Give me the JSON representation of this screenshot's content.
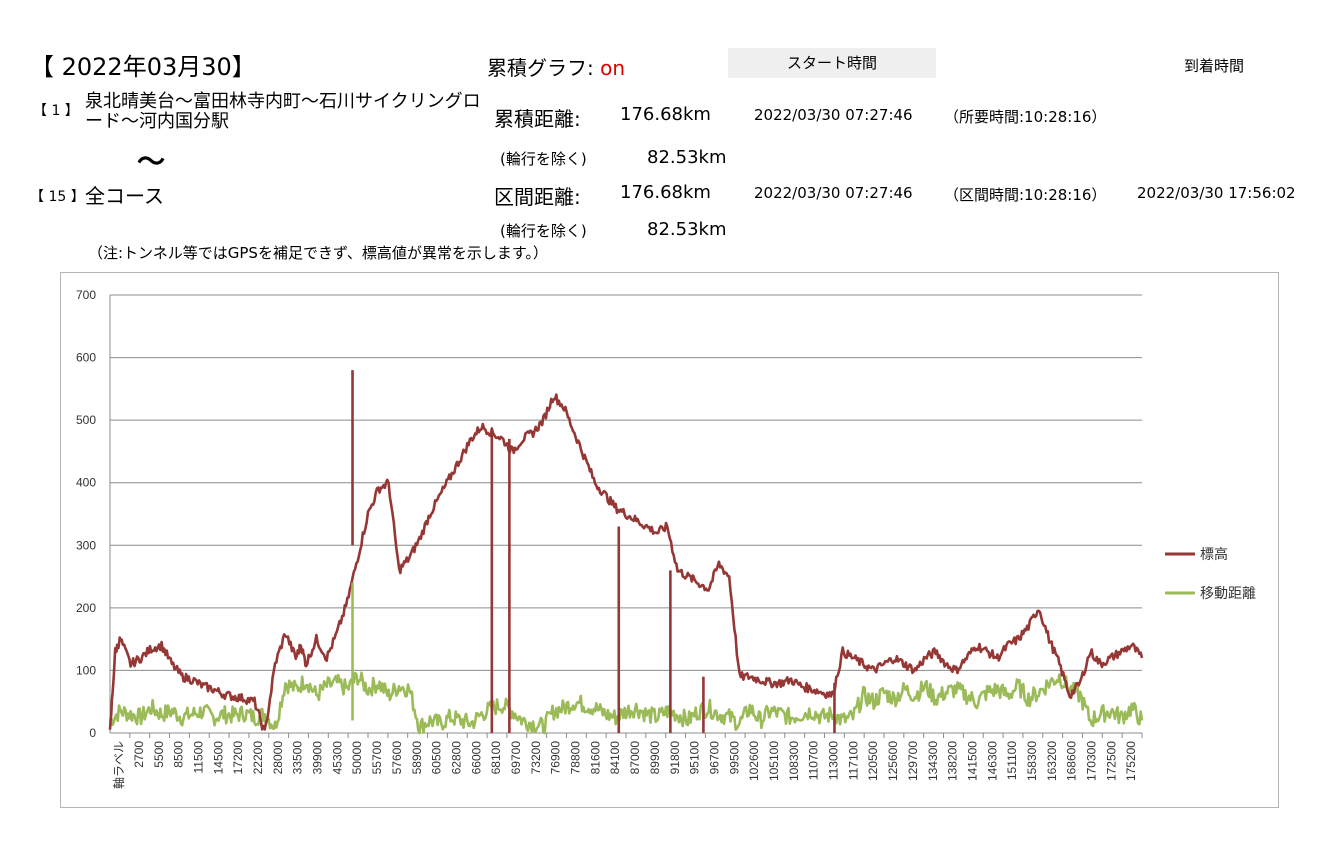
{
  "header": {
    "date": "【 2022年03月30】",
    "cumulative_graph_label": "累積グラフ:",
    "cumulative_graph_value": "on",
    "start_time_button": "スタート時間",
    "arrival_time_label": "到着時間"
  },
  "route": {
    "first_no": "【 1 】",
    "first_name": "泉北晴美台～富田林寺内町～石川サイクリングロード～河内国分駅",
    "tilde": "～",
    "last_no": "【 15 】",
    "last_name": "全コース"
  },
  "stats": {
    "cumulative_distance_label": "累積距離:",
    "cumulative_distance_value": "176.68km",
    "cumulative_start": "2022/03/30 07:27:46",
    "cumulative_required_time": "（所要時間:10:28:16）",
    "excluding_carry_label_1": "(輪行を除く)",
    "excluding_carry_value_1": "82.53km",
    "section_distance_label": "区間距離:",
    "section_distance_value": "176.68km",
    "section_start": "2022/03/30 07:27:46",
    "section_time": "（区間時間:10:28:16）",
    "section_arrival": "2022/03/30 17:56:02",
    "excluding_carry_label_2": "(輪行を除く)",
    "excluding_carry_value_2": "82.53km"
  },
  "note": "（注:トンネル等ではGPSを補足できず、標高値が異常を示します。）",
  "chart_data": {
    "type": "line",
    "title": "",
    "xlabel": "",
    "ylabel": "",
    "ylim": [
      0,
      700
    ],
    "yticks": [
      0,
      100,
      200,
      300,
      400,
      500,
      600,
      700
    ],
    "x_tick_labels": [
      "軸ラベル",
      "2700",
      "5500",
      "8500",
      "11500",
      "14500",
      "17200",
      "22200",
      "28000",
      "33500",
      "39900",
      "45300",
      "50000",
      "55700",
      "57600",
      "58900",
      "60500",
      "62800",
      "66000",
      "68100",
      "69700",
      "73200",
      "76900",
      "78800",
      "81600",
      "84100",
      "87000",
      "89900",
      "91800",
      "95100",
      "96700",
      "99500",
      "102600",
      "105100",
      "108300",
      "110700",
      "113000",
      "117100",
      "120500",
      "125600",
      "129700",
      "134300",
      "138200",
      "141500",
      "146300",
      "151100",
      "158300",
      "163200",
      "168600",
      "170300",
      "172500",
      "175200"
    ],
    "grid": true,
    "legend_position": "right",
    "colors": {
      "elevation": "#953735",
      "moving_distance": "#9BBB59"
    },
    "series": [
      {
        "name": "標高",
        "key": "elevation",
        "x": [
          0,
          0.5,
          1,
          2,
          3,
          4,
          5,
          6,
          7,
          8,
          9,
          10,
          11,
          12,
          13,
          14,
          15,
          16,
          17,
          18,
          18.5,
          19,
          20,
          21,
          22,
          23,
          24,
          25,
          26,
          27,
          28,
          29,
          30,
          31,
          32,
          33,
          34,
          35,
          36,
          37,
          38,
          39,
          40,
          41,
          42,
          43,
          44,
          45,
          46,
          47,
          48,
          49,
          50,
          51,
          52,
          53,
          54,
          55,
          56,
          57,
          58,
          59,
          60,
          61,
          62,
          63,
          64,
          65,
          66,
          67,
          68,
          69,
          70,
          71,
          72,
          73,
          74,
          75,
          76,
          77,
          78,
          79,
          80,
          81,
          82,
          83,
          84,
          85,
          86,
          87,
          88,
          89,
          90,
          91,
          92,
          93,
          94,
          95,
          96,
          97,
          98,
          99,
          100
        ],
        "values": [
          0,
          130,
          150,
          110,
          120,
          135,
          140,
          110,
          90,
          85,
          75,
          70,
          62,
          58,
          55,
          50,
          0,
          110,
          160,
          120,
          140,
          110,
          150,
          120,
          160,
          210,
          280,
          350,
          390,
          400,
          260,
          280,
          310,
          350,
          380,
          410,
          440,
          470,
          490,
          480,
          470,
          450,
          470,
          480,
          500,
          540,
          520,
          480,
          440,
          400,
          380,
          360,
          350,
          340,
          330,
          320,
          330,
          260,
          250,
          240,
          230,
          270,
          250,
          90,
          90,
          85,
          80,
          80,
          85,
          75,
          70,
          65,
          60,
          130,
          120,
          110,
          100,
          110,
          120,
          110,
          100,
          120,
          130,
          110,
          100,
          120,
          140,
          130,
          120,
          140,
          150,
          170,
          200,
          150,
          110,
          60,
          80,
          130,
          110,
          120,
          130,
          140,
          120
        ]
      },
      {
        "name": "移動距離",
        "key": "moving_distance",
        "x": [
          0,
          1,
          2,
          3,
          4,
          5,
          6,
          7,
          8,
          9,
          10,
          11,
          12,
          13,
          14,
          15,
          16,
          17,
          18,
          19,
          20,
          21,
          22,
          23,
          24,
          25,
          26,
          27,
          28,
          29,
          30,
          31,
          32,
          33,
          34,
          35,
          36,
          37,
          38,
          39,
          40,
          41,
          42,
          43,
          44,
          45,
          46,
          47,
          48,
          49,
          50,
          51,
          52,
          53,
          54,
          55,
          56,
          57,
          58,
          59,
          60,
          61,
          62,
          63,
          64,
          65,
          66,
          67,
          68,
          69,
          70,
          71,
          72,
          73,
          74,
          75,
          76,
          77,
          78,
          79,
          80,
          81,
          82,
          83,
          84,
          85,
          86,
          87,
          88,
          89,
          90,
          91,
          92,
          93,
          94,
          95,
          96,
          97,
          98,
          99,
          100
        ],
        "values": [
          20,
          35,
          30,
          25,
          40,
          30,
          35,
          25,
          30,
          35,
          25,
          30,
          28,
          32,
          25,
          30,
          10,
          80,
          70,
          85,
          60,
          75,
          80,
          70,
          90,
          70,
          80,
          60,
          75,
          70,
          10,
          20,
          15,
          25,
          20,
          15,
          30,
          40,
          45,
          35,
          20,
          15,
          10,
          35,
          40,
          50,
          45,
          40,
          30,
          25,
          35,
          40,
          30,
          25,
          35,
          30,
          20,
          35,
          40,
          30,
          25,
          15,
          40,
          20,
          35,
          30,
          25,
          30,
          35,
          25,
          30,
          20,
          25,
          60,
          50,
          65,
          55,
          70,
          60,
          75,
          55,
          65,
          70,
          60,
          50,
          65,
          70,
          60,
          75,
          55,
          65,
          80,
          90,
          70,
          60,
          20,
          30,
          35,
          25,
          40,
          20
        ]
      }
    ],
    "spikes": [
      {
        "series": "elevation",
        "at": 23.5,
        "from": 300,
        "to": 580
      },
      {
        "series": "elevation",
        "at": 37.0,
        "from": 480,
        "to": 0
      },
      {
        "series": "elevation",
        "at": 38.7,
        "from": 470,
        "to": 0
      },
      {
        "series": "elevation",
        "at": 49.3,
        "from": 330,
        "to": 0
      },
      {
        "series": "elevation",
        "at": 54.3,
        "from": 260,
        "to": 0
      },
      {
        "series": "elevation",
        "at": 57.5,
        "from": 90,
        "to": 0
      },
      {
        "series": "elevation",
        "at": 70.2,
        "from": 80,
        "to": 0
      },
      {
        "series": "moving_distance",
        "at": 23.5,
        "from": 20,
        "to": 240
      }
    ]
  }
}
